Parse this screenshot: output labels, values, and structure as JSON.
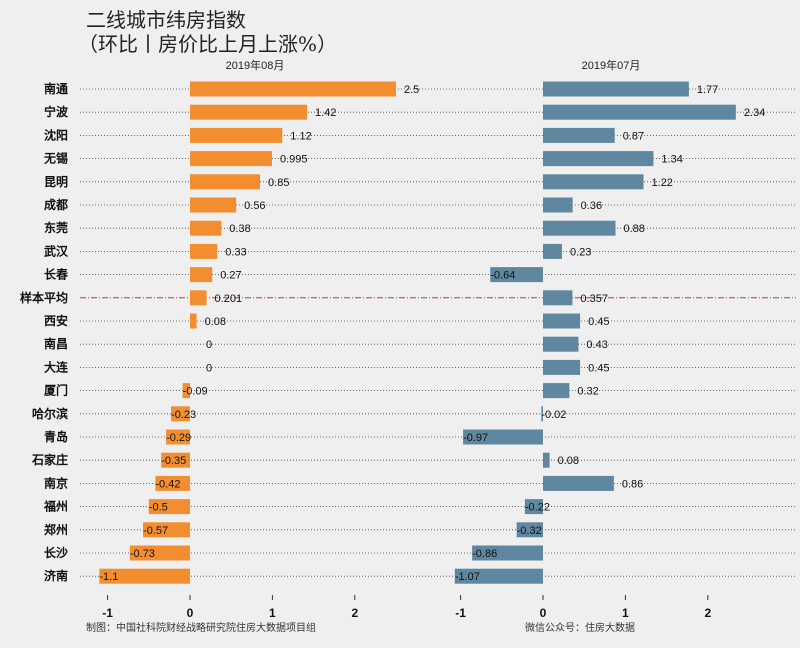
{
  "title_line1": "二线城市纬房指数",
  "title_line2": "（环比丨房价比上月上涨%）",
  "footer_left": "制图：中国社科院财经战略研究院住房大数据项目组",
  "footer_right": "微信公众号：住房大数据",
  "colors": {
    "left_bar": "#f28e2f",
    "right_bar": "#5f87a0",
    "avg_line": "#c0392b",
    "background": "#efefef"
  },
  "chart_data": [
    {
      "type": "bar",
      "orientation": "horizontal",
      "title": "2019年08月",
      "categories": [
        "南通",
        "宁波",
        "沈阳",
        "无锡",
        "昆明",
        "成都",
        "东莞",
        "武汉",
        "长春",
        "样本平均",
        "西安",
        "南昌",
        "大连",
        "厦门",
        "哈尔滨",
        "青岛",
        "石家庄",
        "南京",
        "福州",
        "郑州",
        "长沙",
        "济南"
      ],
      "values": [
        2.5,
        1.42,
        1.12,
        0.995,
        0.85,
        0.56,
        0.38,
        0.33,
        0.27,
        0.201,
        0.08,
        0,
        0,
        -0.09,
        -0.23,
        -0.29,
        -0.35,
        -0.42,
        -0.5,
        -0.57,
        -0.73,
        -1.1
      ],
      "labels": [
        "2.5",
        "1.42",
        "1.12",
        "0.995",
        "0.85",
        "0.56",
        "0.38",
        "0.33",
        "0.27",
        "0.201",
        "0.08",
        "0",
        "0",
        "-0.09",
        "-0.23",
        "-0.29",
        "-0.35",
        "-0.42",
        "-0.5",
        "-0.57",
        "-0.73",
        "-1.1"
      ],
      "xlim": [
        -1.1,
        2.5
      ],
      "xticks": [
        "-1",
        "0",
        "1",
        "2"
      ],
      "xtick_values": [
        -1,
        0,
        1,
        2
      ],
      "highlight_category": "样本平均"
    },
    {
      "type": "bar",
      "orientation": "horizontal",
      "title": "2019年07月",
      "categories": [
        "南通",
        "宁波",
        "沈阳",
        "无锡",
        "昆明",
        "成都",
        "东莞",
        "武汉",
        "长春",
        "样本平均",
        "西安",
        "南昌",
        "大连",
        "厦门",
        "哈尔滨",
        "青岛",
        "石家庄",
        "南京",
        "福州",
        "郑州",
        "长沙",
        "济南"
      ],
      "values": [
        1.77,
        2.34,
        0.87,
        1.34,
        1.22,
        0.36,
        0.88,
        0.23,
        -0.64,
        0.357,
        0.45,
        0.43,
        0.45,
        0.32,
        -0.02,
        -0.97,
        0.08,
        0.86,
        -0.22,
        -0.32,
        -0.86,
        -1.07
      ],
      "labels": [
        "1.77",
        "2.34",
        "0.87",
        "1.34",
        "1.22",
        "0.36",
        "0.88",
        "0.23",
        "-0.64",
        "0.357",
        "0.45",
        "0.43",
        "0.45",
        "0.32",
        "-0.02",
        "-0.97",
        "0.08",
        "0.86",
        "-0.22",
        "-0.32",
        "-0.86",
        "-1.07"
      ],
      "xlim": [
        -1.07,
        2.34
      ],
      "xticks": [
        "-1",
        "0",
        "1",
        "2"
      ],
      "xtick_values": [
        -1,
        0,
        1,
        2
      ],
      "highlight_category": "样本平均"
    }
  ]
}
